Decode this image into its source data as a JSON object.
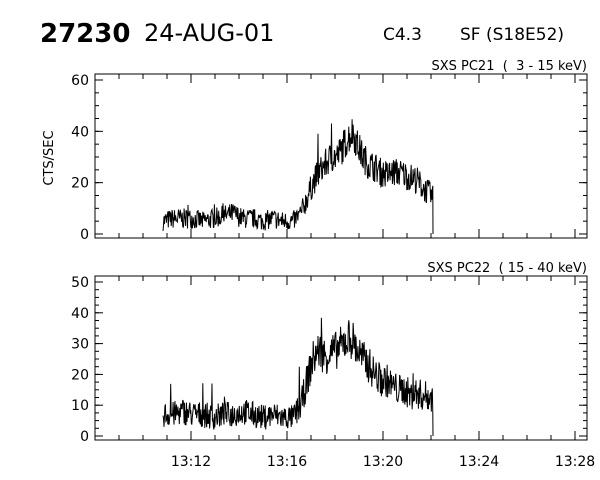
{
  "header": {
    "event_id": "27230",
    "date": "24-AUG-01",
    "goes_class": "C4.3",
    "flare_info": "SF (S18E52)"
  },
  "chart_data": [
    {
      "type": "line",
      "title": "SXS PC21  (  3 - 15 keV)",
      "ylabel": "CTS/SEC",
      "xlabel": "",
      "xlim": [
        "13:08:00",
        "13:28:30"
      ],
      "ylim": [
        0,
        60
      ],
      "yticks": [
        0,
        20,
        40,
        60
      ],
      "xticks": [
        "13:12",
        "13:16",
        "13:20",
        "13:24",
        "13:28"
      ],
      "grid": false,
      "series": [
        {
          "color": "#000000",
          "x": [
            "13:10:50",
            "13:11:15",
            "13:11:40",
            "13:12:05",
            "13:12:30",
            "13:12:55",
            "13:13:20",
            "13:13:45",
            "13:14:10",
            "13:14:35",
            "13:15:00",
            "13:15:25",
            "13:15:50",
            "13:16:15",
            "13:16:35",
            "13:16:50",
            "13:17:05",
            "13:17:20",
            "13:17:35",
            "13:17:50",
            "13:18:05",
            "13:18:20",
            "13:18:35",
            "13:18:45",
            "13:18:55",
            "13:19:10",
            "13:19:25",
            "13:19:40",
            "13:19:55",
            "13:20:10",
            "13:20:25",
            "13:20:40",
            "13:20:55",
            "13:21:10",
            "13:21:25",
            "13:21:40",
            "13:21:55",
            "13:22:05"
          ],
          "values": [
            5,
            6,
            6,
            6,
            5,
            6,
            7,
            8,
            6,
            6,
            5,
            6,
            5,
            5,
            8,
            14,
            20,
            24,
            27,
            30,
            30,
            34,
            38,
            40,
            35,
            30,
            27,
            26,
            24,
            23,
            24,
            24,
            23,
            22,
            21,
            18,
            16,
            14
          ]
        }
      ]
    },
    {
      "type": "line",
      "title": "SXS PC22  ( 15 - 40 keV)",
      "ylabel": "",
      "xlabel": "",
      "xlim": [
        "13:08:00",
        "13:28:30"
      ],
      "ylim": [
        0,
        50
      ],
      "yticks": [
        0,
        10,
        20,
        30,
        40,
        50
      ],
      "xticks": [
        "13:12",
        "13:16",
        "13:20",
        "13:24",
        "13:28"
      ],
      "grid": false,
      "series": [
        {
          "color": "#000000",
          "x": [
            "13:10:50",
            "13:11:15",
            "13:11:40",
            "13:12:05",
            "13:12:30",
            "13:12:55",
            "13:13:20",
            "13:13:45",
            "13:14:10",
            "13:14:35",
            "13:15:00",
            "13:15:25",
            "13:15:50",
            "13:16:15",
            "13:16:35",
            "13:16:50",
            "13:17:05",
            "13:17:20",
            "13:17:35",
            "13:17:50",
            "13:18:05",
            "13:18:20",
            "13:18:35",
            "13:18:45",
            "13:18:55",
            "13:19:10",
            "13:19:25",
            "13:19:40",
            "13:19:55",
            "13:20:10",
            "13:20:25",
            "13:20:40",
            "13:20:55",
            "13:21:10",
            "13:21:25",
            "13:21:40",
            "13:21:55",
            "13:22:05"
          ],
          "values": [
            7,
            7,
            8,
            7,
            7,
            6,
            7,
            7,
            8,
            7,
            6,
            7,
            6,
            6,
            10,
            18,
            25,
            28,
            26,
            27,
            28,
            30,
            32,
            31,
            28,
            25,
            23,
            20,
            18,
            18,
            16,
            15,
            15,
            13,
            14,
            13,
            13,
            12
          ]
        }
      ]
    }
  ]
}
